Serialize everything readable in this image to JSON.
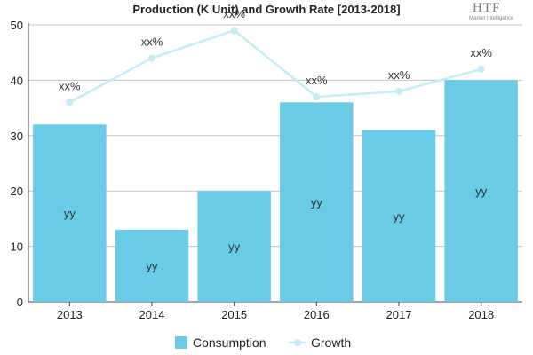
{
  "title": "Production (K Unit) and Growth Rate [2013-2018]",
  "logo": {
    "main": "HTF",
    "sub": "Market Intelligence"
  },
  "chart_data": {
    "type": "bar",
    "categories": [
      "2013",
      "2014",
      "2015",
      "2016",
      "2017",
      "2018"
    ],
    "ylim": [
      0,
      50
    ],
    "yticks": [
      0,
      10,
      20,
      30,
      40,
      50
    ],
    "grid": true,
    "legend_position": "bottom",
    "series": [
      {
        "name": "Consumption",
        "type": "bar",
        "color": "#69cbe5",
        "values": [
          32,
          13,
          20,
          36,
          31,
          40
        ],
        "labels": [
          "yy",
          "yy",
          "yy",
          "yy",
          "yy",
          "yy"
        ]
      },
      {
        "name": "Growth",
        "type": "line",
        "color": "#c3eef5",
        "values": [
          36,
          44,
          49,
          37,
          38,
          42
        ],
        "labels": [
          "xx%",
          "xx%",
          "xx%",
          "xx%",
          "xx%",
          "xx%"
        ]
      }
    ]
  }
}
